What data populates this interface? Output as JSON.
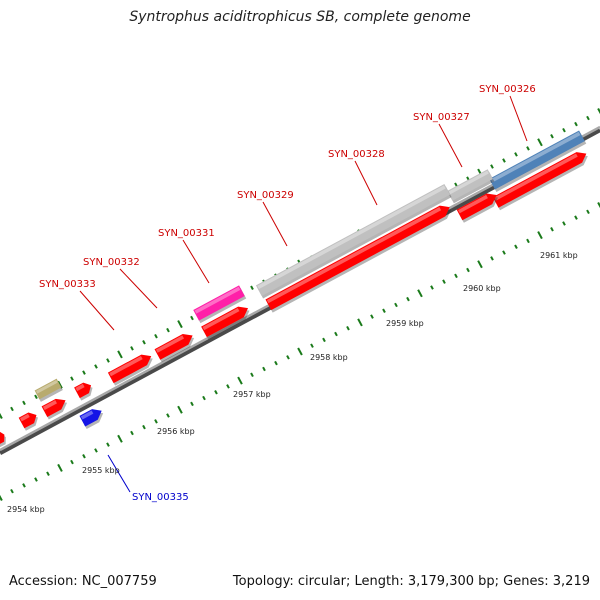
{
  "title": "Syntrophus aciditrophicus SB, complete genome",
  "accession": "Accession: NC_007759",
  "stats": "Topology: circular; Length: 3,179,300 bp; Genes: 3,219",
  "colors": {
    "cds": "#ff0000",
    "rna": "#c0c0c0",
    "label_red": "#cc0000",
    "label_blue": "#0000cc",
    "backbone": "#808080",
    "tick": "#1a7a1a"
  },
  "kbp_labels": [
    "2954 kbp",
    "2955 kbp",
    "2956 kbp",
    "2957 kbp",
    "2958 kbp",
    "2959 kbp",
    "2960 kbp",
    "2961 kbp"
  ],
  "gene_labels": [
    {
      "text": "SYN_00326",
      "color": "#cc0000"
    },
    {
      "text": "SYN_00327",
      "color": "#cc0000"
    },
    {
      "text": "SYN_00328",
      "color": "#cc0000"
    },
    {
      "text": "SYN_00329",
      "color": "#cc0000"
    },
    {
      "text": "SYN_00331",
      "color": "#cc0000"
    },
    {
      "text": "SYN_00332",
      "color": "#cc0000"
    },
    {
      "text": "SYN_00333",
      "color": "#cc0000"
    },
    {
      "text": "SYN_00335",
      "color": "#0000cc"
    }
  ]
}
